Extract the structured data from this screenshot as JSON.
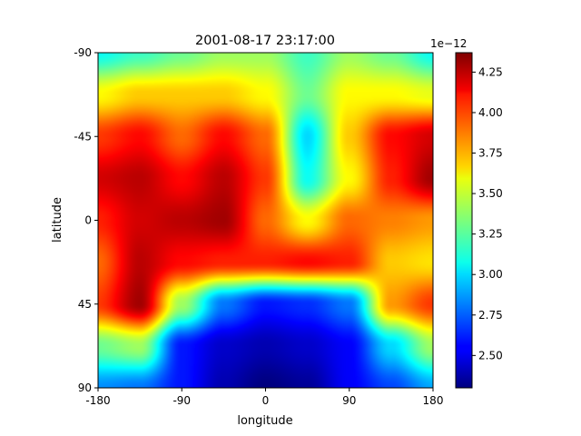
{
  "chart_data": {
    "type": "heatmap",
    "title": "2001-08-17 23:17:00",
    "xlabel": "longitude",
    "ylabel": "latitude",
    "xlim": [
      -180,
      180
    ],
    "ylim": [
      -90,
      90
    ],
    "y_axis_inverted": true,
    "xticks": [
      -180,
      -90,
      0,
      90,
      180
    ],
    "xtick_labels": [
      "-180",
      "-90",
      "0",
      "90",
      "180"
    ],
    "yticks": [
      -90,
      -45,
      0,
      45,
      90
    ],
    "ytick_labels": [
      "-90",
      "-45",
      "0",
      "45",
      "90"
    ],
    "colormap": "jet",
    "colorbar": {
      "vmin": 2.3,
      "vmax": 4.37,
      "multiplier": "1e−12",
      "ticks": [
        2.5,
        2.75,
        3.0,
        3.25,
        3.5,
        3.75,
        4.0,
        4.25
      ],
      "tick_labels": [
        "2.50",
        "2.75",
        "3.00",
        "3.25",
        "3.50",
        "3.75",
        "4.00",
        "4.25"
      ]
    },
    "grid": false,
    "lon": [
      -180,
      -135,
      -90,
      -45,
      0,
      45,
      90,
      135,
      180
    ],
    "lat": [
      -90,
      -67.5,
      -45,
      -22.5,
      0,
      22.5,
      45,
      67.5,
      90
    ],
    "z": [
      [
        3.1,
        3.2,
        3.3,
        3.4,
        3.4,
        3.2,
        3.4,
        3.3,
        3.1
      ],
      [
        3.6,
        3.7,
        3.7,
        3.7,
        3.6,
        3.3,
        3.6,
        3.6,
        3.55
      ],
      [
        4.0,
        4.1,
        3.9,
        4.1,
        3.9,
        3.0,
        3.7,
        4.1,
        4.2
      ],
      [
        4.2,
        4.25,
        4.1,
        4.25,
        4.0,
        3.1,
        3.6,
        4.05,
        4.3
      ],
      [
        4.05,
        4.2,
        4.25,
        4.3,
        3.9,
        3.6,
        3.9,
        3.85,
        3.8
      ],
      [
        3.9,
        4.25,
        4.1,
        4.05,
        4.05,
        4.1,
        4.05,
        3.7,
        3.65
      ],
      [
        4.0,
        4.3,
        3.4,
        2.8,
        2.6,
        2.65,
        2.8,
        3.8,
        4.0
      ],
      [
        3.3,
        3.4,
        2.6,
        2.45,
        2.4,
        2.45,
        2.55,
        3.0,
        3.4
      ],
      [
        2.85,
        2.8,
        2.6,
        2.4,
        2.3,
        2.35,
        2.55,
        2.7,
        2.9
      ]
    ]
  }
}
